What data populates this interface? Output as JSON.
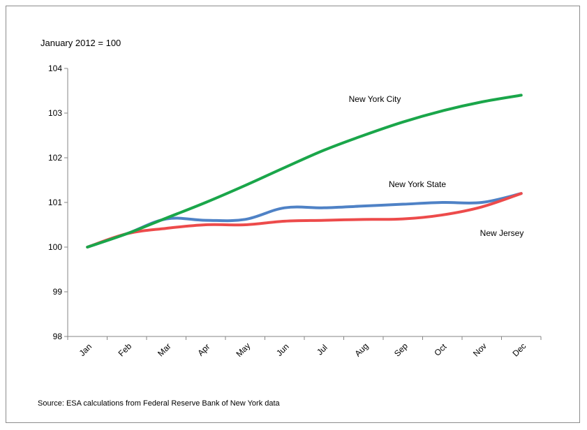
{
  "chart_data": {
    "type": "line",
    "title": "",
    "ylabel": "January 2012 = 100",
    "xlabel": "",
    "categories": [
      "Jan",
      "Feb",
      "Mar",
      "Apr",
      "May",
      "Jun",
      "Jul",
      "Aug",
      "Sep",
      "Oct",
      "Nov",
      "Dec"
    ],
    "ylim": [
      98,
      104
    ],
    "yticks": [
      "98",
      "99",
      "100",
      "101",
      "102",
      "103",
      "104"
    ],
    "grid": false,
    "legend": "none",
    "series": [
      {
        "name": "New York City",
        "color": "#1aa64a",
        "values": [
          100.0,
          100.3,
          100.65,
          101.0,
          101.38,
          101.78,
          102.17,
          102.5,
          102.8,
          103.05,
          103.25,
          103.4
        ]
      },
      {
        "name": "New York State",
        "color": "#4f82c6",
        "values": [
          100.0,
          100.3,
          100.63,
          100.6,
          100.62,
          100.88,
          100.88,
          100.92,
          100.96,
          101.0,
          101.0,
          101.2
        ]
      },
      {
        "name": "New Jersey",
        "color": "#ed4b4b",
        "values": [
          100.0,
          100.3,
          100.42,
          100.5,
          100.5,
          100.58,
          100.6,
          100.62,
          100.63,
          100.72,
          100.9,
          101.2
        ]
      }
    ],
    "source": "Source:  ESA calculations from Federal Reserve Bank of New York data"
  }
}
